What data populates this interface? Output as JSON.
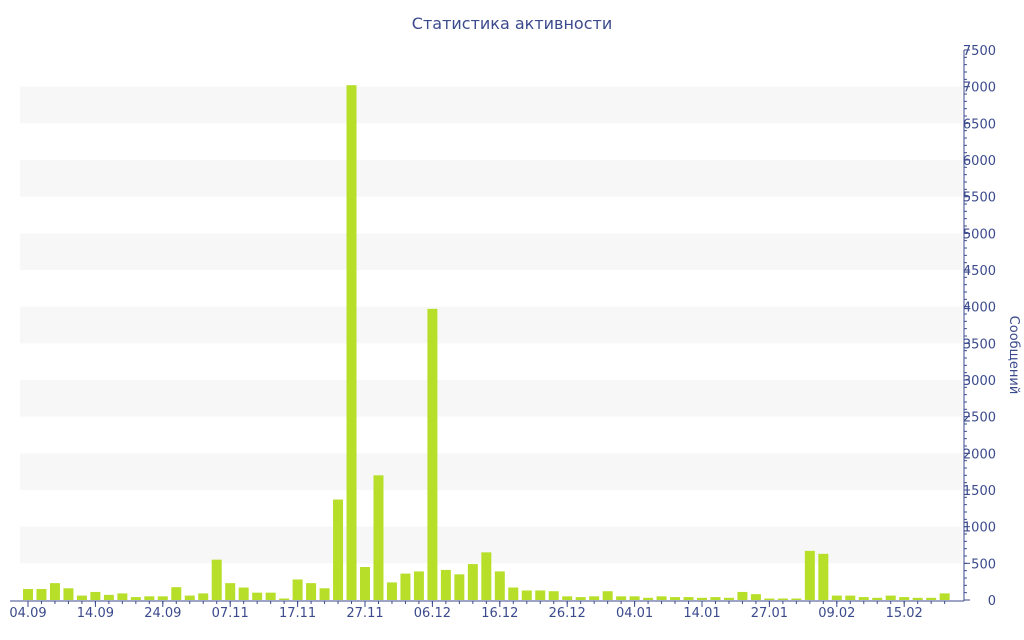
{
  "chart_data": {
    "type": "bar",
    "title": "Статистика активности",
    "xlabel": "",
    "ylabel": "Сообщений",
    "ylim": [
      0,
      7500
    ],
    "yticks": [
      0,
      500,
      1000,
      1500,
      2000,
      2500,
      3000,
      3500,
      4000,
      4500,
      5000,
      5500,
      6000,
      6500,
      7000,
      7500
    ],
    "y_axis_side": "right",
    "grid": "alternating horizontal bands",
    "x_tick_labels": [
      {
        "label": "04.09",
        "at_bar": 0
      },
      {
        "label": "14.09",
        "at_bar": 5
      },
      {
        "label": "24.09",
        "at_bar": 10
      },
      {
        "label": "07.11",
        "at_bar": 15
      },
      {
        "label": "17.11",
        "at_bar": 20
      },
      {
        "label": "27.11",
        "at_bar": 25
      },
      {
        "label": "06.12",
        "at_bar": 30
      },
      {
        "label": "16.12",
        "at_bar": 35
      },
      {
        "label": "26.12",
        "at_bar": 40
      },
      {
        "label": "04.01",
        "at_bar": 45
      },
      {
        "label": "14.01",
        "at_bar": 50
      },
      {
        "label": "27.01",
        "at_bar": 55
      },
      {
        "label": "09.02",
        "at_bar": 60
      },
      {
        "label": "15.02",
        "at_bar": 65
      }
    ],
    "values": [
      150,
      150,
      230,
      160,
      60,
      110,
      70,
      90,
      40,
      50,
      50,
      175,
      60,
      90,
      550,
      230,
      170,
      100,
      100,
      20,
      280,
      230,
      160,
      1370,
      7020,
      450,
      1700,
      240,
      360,
      390,
      3970,
      410,
      350,
      490,
      650,
      390,
      170,
      130,
      130,
      120,
      50,
      40,
      50,
      120,
      50,
      50,
      30,
      50,
      40,
      40,
      30,
      40,
      30,
      110,
      80,
      20,
      20,
      20,
      670,
      630,
      60,
      60,
      40,
      30,
      60,
      40,
      30,
      30,
      90
    ],
    "colors": {
      "bar": "#b7df2a",
      "band": "#f7f7f7",
      "axis": "#3b4a8c",
      "text": "#3b4a8c"
    }
  }
}
